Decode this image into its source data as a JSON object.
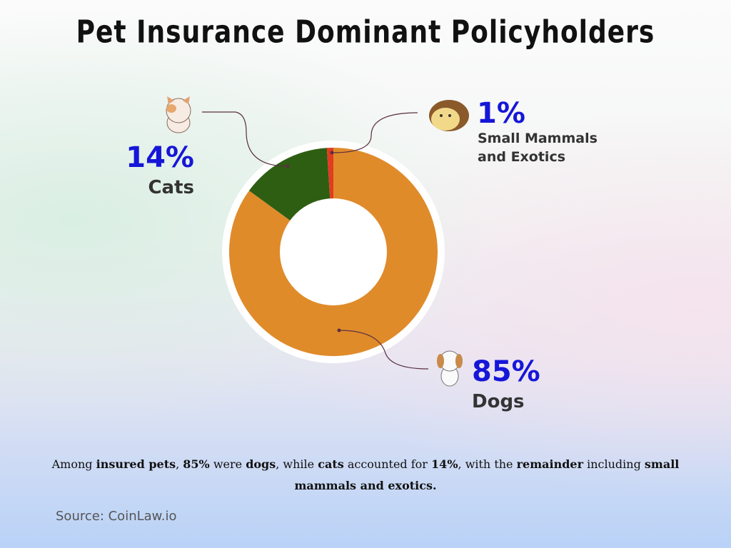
{
  "chart_data": {
    "type": "donut",
    "title": "Pet Insurance Dominant Policyholders",
    "categories": [
      "Dogs",
      "Cats",
      "Small Mammals and Exotics"
    ],
    "values": [
      85,
      14,
      1
    ],
    "value_labels": [
      "85%",
      "14%",
      "1%"
    ],
    "colors": [
      "#e08b2a",
      "#2e5e12",
      "#e23c22"
    ],
    "caption": [
      {
        "text": "Among ",
        "bold": false
      },
      {
        "text": "insured pets",
        "bold": true
      },
      {
        "text": ", ",
        "bold": false
      },
      {
        "text": "85%",
        "bold": true
      },
      {
        "text": " were ",
        "bold": false
      },
      {
        "text": "dogs",
        "bold": true
      },
      {
        "text": ", while ",
        "bold": false
      },
      {
        "text": "cats",
        "bold": true
      },
      {
        "text": " accounted for ",
        "bold": false
      },
      {
        "text": "14%",
        "bold": true
      },
      {
        "text": ", with the ",
        "bold": false
      },
      {
        "text": "remainder",
        "bold": true
      },
      {
        "text": " including ",
        "bold": false
      },
      {
        "text": "small mammals and exotics.",
        "bold": true
      }
    ],
    "source": "Source: CoinLaw.io"
  }
}
